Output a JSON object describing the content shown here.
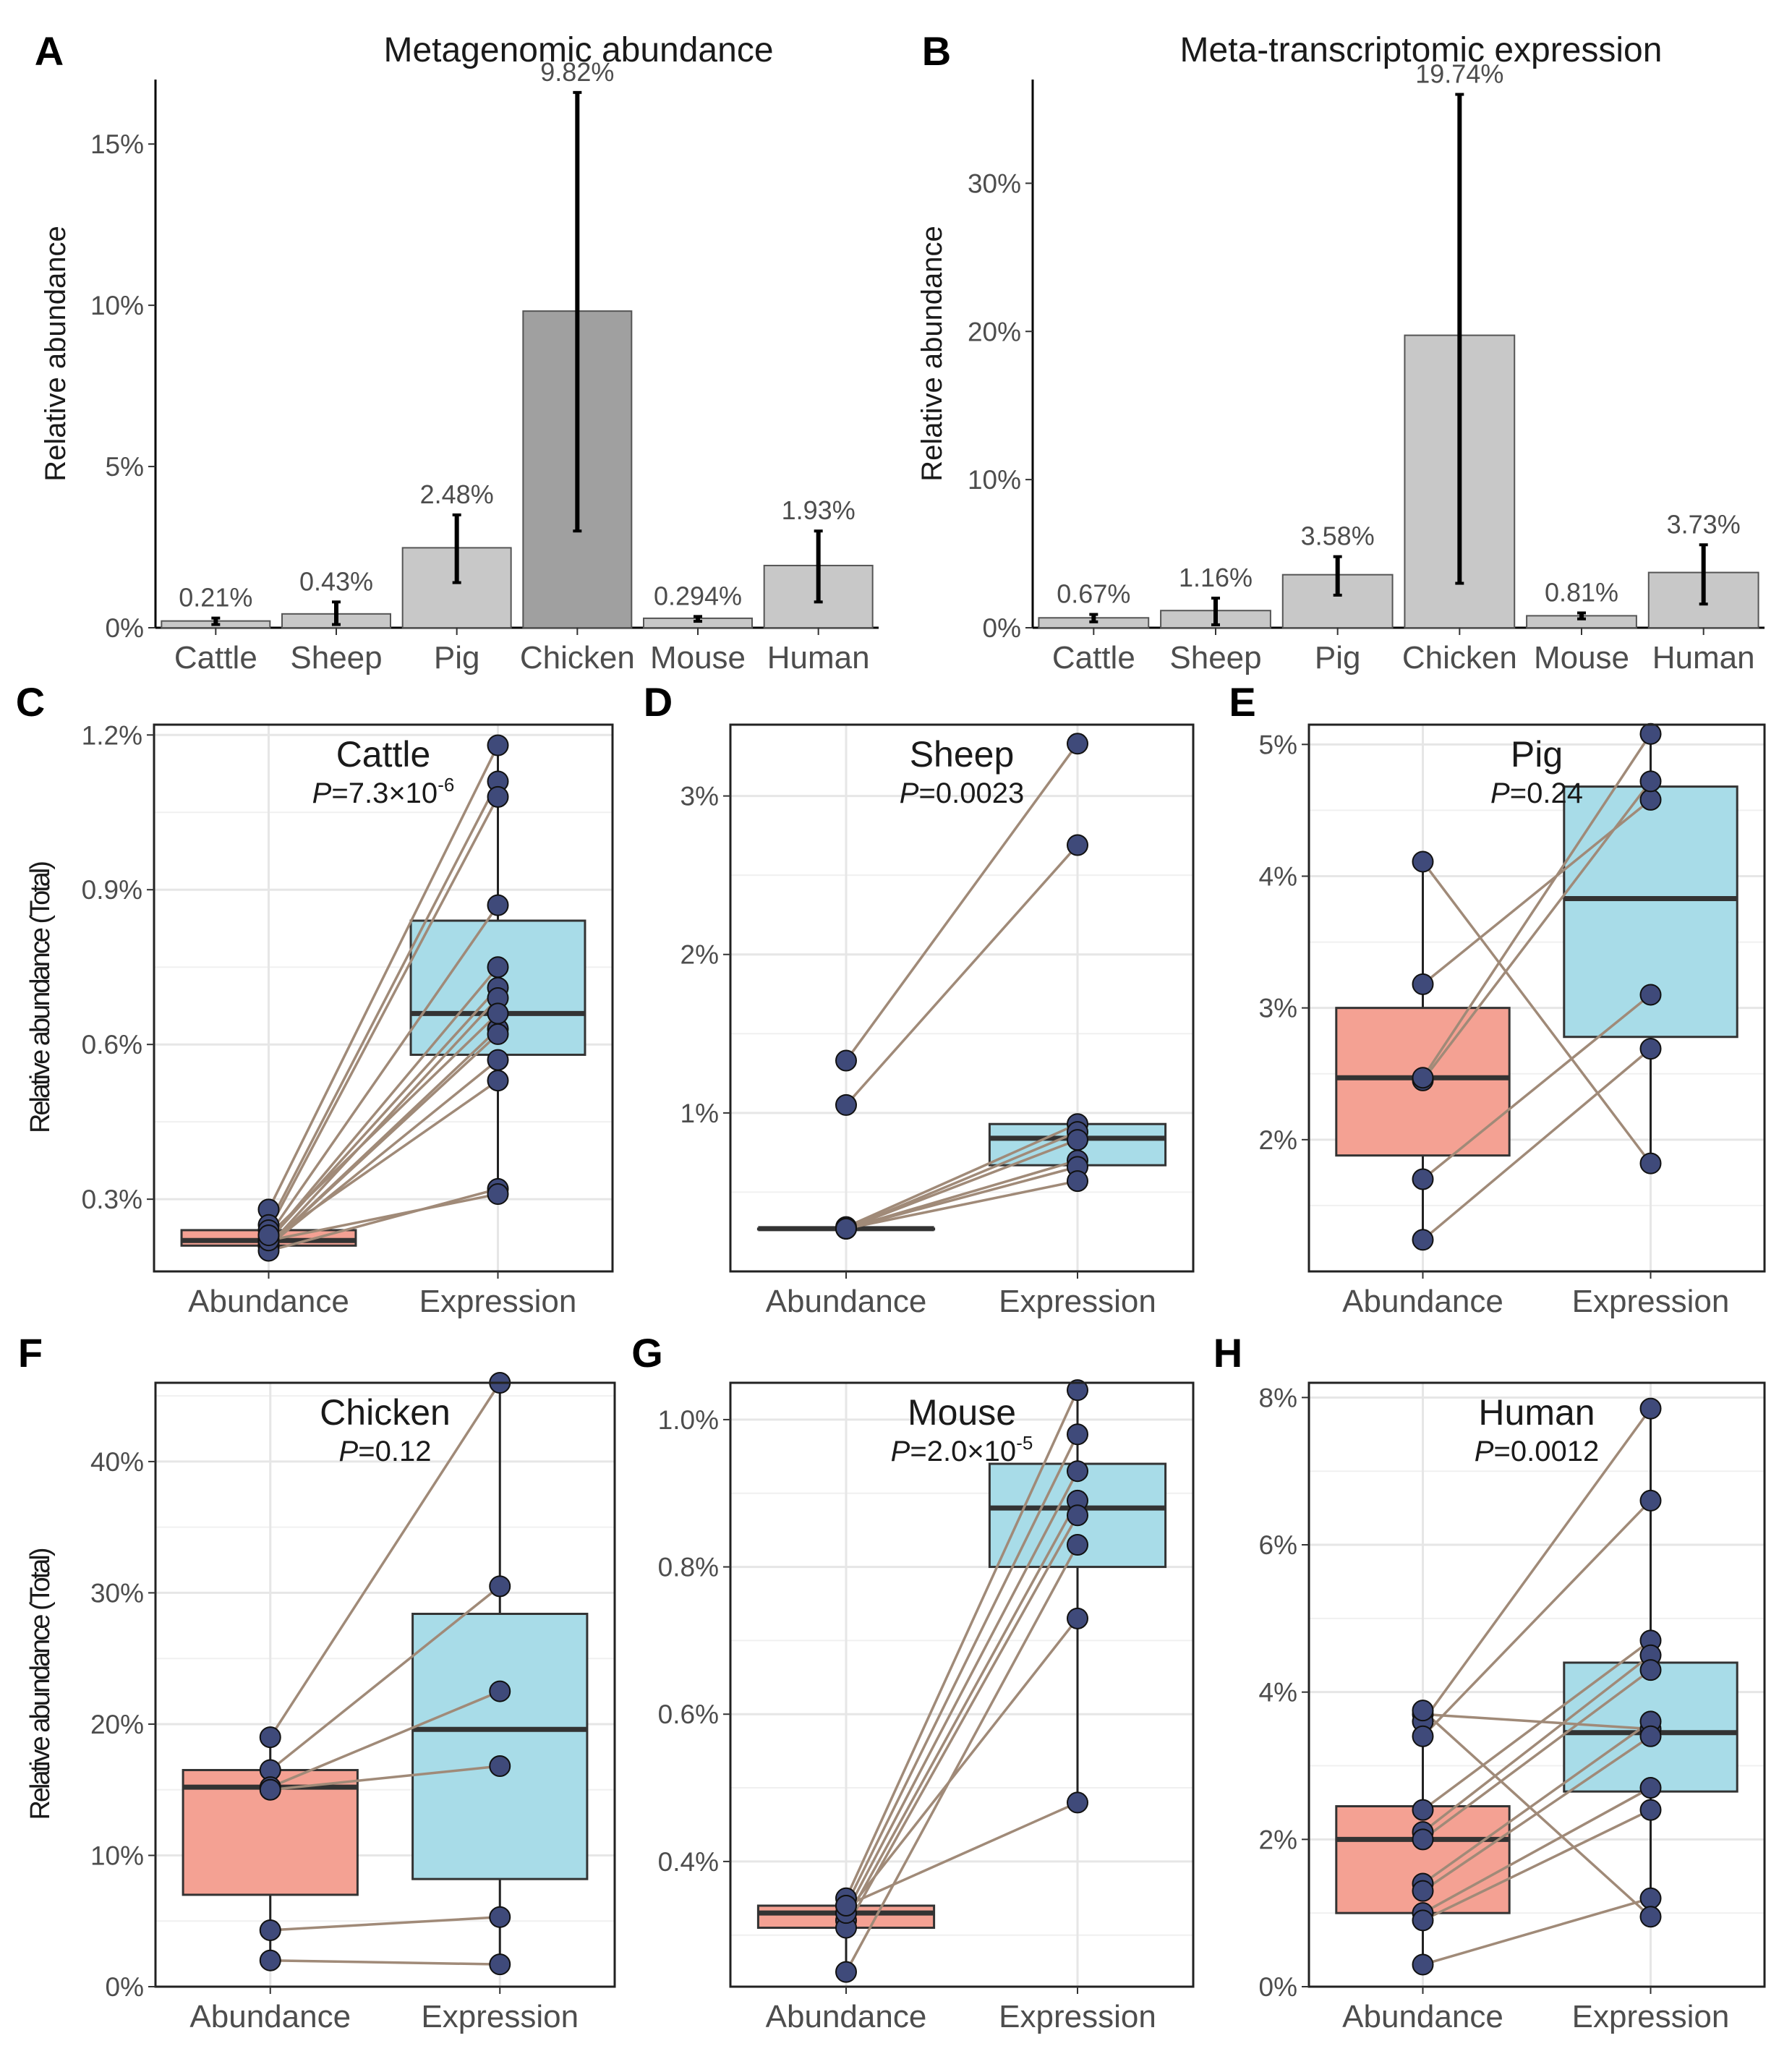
{
  "chart_data": [
    {
      "id": "A",
      "type": "bar",
      "letter": "A",
      "title": "Metagenomic abundance",
      "ylabel": "Relative abundance",
      "categories": [
        "Cattle",
        "Sheep",
        "Pig",
        "Chicken",
        "Mouse",
        "Human"
      ],
      "values": [
        0.21,
        0.43,
        2.48,
        9.82,
        0.294,
        1.93
      ],
      "labels": [
        "0.21%",
        "0.43%",
        "2.48%",
        "9.82%",
        "0.294%",
        "1.93%"
      ],
      "err_low": [
        0.1,
        0.1,
        1.4,
        3.0,
        0.2,
        0.8
      ],
      "err_high": [
        0.3,
        0.8,
        3.5,
        16.6,
        0.35,
        3.0
      ],
      "ylim": [
        0,
        17
      ],
      "yticks": [
        0,
        5,
        10,
        15
      ],
      "ytick_labels": [
        "0%",
        "5%",
        "10%",
        "15%"
      ],
      "bar_colors": [
        "#c8c8c8",
        "#c8c8c8",
        "#c8c8c8",
        "#a0a0a0",
        "#c8c8c8",
        "#c8c8c8"
      ]
    },
    {
      "id": "B",
      "type": "bar",
      "letter": "B",
      "title": "Meta-transcriptomic expression",
      "ylabel": "Relative abundance",
      "categories": [
        "Cattle",
        "Sheep",
        "Pig",
        "Chicken",
        "Mouse",
        "Human"
      ],
      "values": [
        0.67,
        1.16,
        3.58,
        19.74,
        0.81,
        3.73
      ],
      "labels": [
        "0.67%",
        "1.16%",
        "3.58%",
        "19.74%",
        "0.81%",
        "3.73%"
      ],
      "err_low": [
        0.4,
        0.2,
        2.2,
        3.0,
        0.6,
        1.6
      ],
      "err_high": [
        0.9,
        2.0,
        4.8,
        36.0,
        1.0,
        5.6
      ],
      "ylim": [
        0,
        37
      ],
      "yticks": [
        0,
        10,
        20,
        30
      ],
      "ytick_labels": [
        "0%",
        "10%",
        "20%",
        "30%"
      ],
      "bar_colors": [
        "#c8c8c8",
        "#c8c8c8",
        "#c8c8c8",
        "#c8c8c8",
        "#c8c8c8",
        "#c8c8c8"
      ]
    },
    {
      "id": "C",
      "type": "box",
      "letter": "C",
      "title": "Cattle",
      "pval_prefix": "P",
      "pval_text": "=7.3×10",
      "pval_exp": "-6",
      "ylabel": "Relative abundance (Total)",
      "categories": [
        "Abundance",
        "Expression"
      ],
      "ylim": [
        0.16,
        1.22
      ],
      "yticks": [
        0.3,
        0.6,
        0.9,
        1.2
      ],
      "ytick_labels": [
        "0.3%",
        "0.6%",
        "0.9%",
        "1.2%"
      ],
      "abundance": [
        0.28,
        0.25,
        0.24,
        0.23,
        0.22,
        0.22,
        0.21,
        0.21,
        0.21,
        0.21,
        0.22,
        0.2,
        0.22,
        0.23
      ],
      "expression": [
        1.18,
        1.11,
        1.08,
        0.87,
        0.75,
        0.71,
        0.69,
        0.63,
        0.62,
        0.57,
        0.53,
        0.32,
        0.31,
        0.66
      ],
      "box_abundance": {
        "q1": 0.21,
        "median": 0.22,
        "q3": 0.24,
        "wlo": 0.2,
        "whi": 0.28
      },
      "box_expression": {
        "q1": 0.58,
        "median": 0.66,
        "q3": 0.84,
        "wlo": 0.31,
        "whi": 1.18
      },
      "grid_y": [
        0.45,
        0.75,
        1.05
      ]
    },
    {
      "id": "D",
      "type": "box",
      "letter": "D",
      "title": "Sheep",
      "pval_prefix": "P",
      "pval_text": "=0.0023",
      "pval_exp": "",
      "categories": [
        "Abundance",
        "Expression"
      ],
      "ylim": [
        0.0,
        3.45
      ],
      "yticks": [
        1,
        2,
        3
      ],
      "ytick_labels": [
        "1%",
        "2%",
        "3%"
      ],
      "abundance": [
        1.33,
        1.05,
        0.28,
        0.27,
        0.27,
        0.27,
        0.27,
        0.27
      ],
      "expression": [
        3.33,
        2.69,
        0.93,
        0.88,
        0.83,
        0.7,
        0.66,
        0.57
      ],
      "box_abundance": {
        "q1": 0.27,
        "median": 0.27,
        "q3": 0.27,
        "wlo": 0.27,
        "whi": 0.27
      },
      "box_expression": {
        "q1": 0.67,
        "median": 0.84,
        "q3": 0.93,
        "wlo": 0.57,
        "whi": 0.93
      },
      "grid_y": [
        0.5,
        1.5,
        2.5
      ]
    },
    {
      "id": "E",
      "type": "box",
      "letter": "E",
      "title": "Pig",
      "pval_prefix": "P",
      "pval_text": "=0.24",
      "pval_exp": "",
      "categories": [
        "Abundance",
        "Expression"
      ],
      "ylim": [
        1.0,
        5.15
      ],
      "yticks": [
        2,
        3,
        4,
        5
      ],
      "ytick_labels": [
        "2%",
        "3%",
        "4%",
        "5%"
      ],
      "abundance": [
        4.11,
        3.18,
        2.45,
        2.47,
        1.7,
        1.24
      ],
      "expression": [
        1.82,
        4.58,
        4.72,
        5.08,
        3.1,
        2.69
      ],
      "box_abundance": {
        "q1": 1.88,
        "median": 2.47,
        "q3": 3.0,
        "wlo": 1.24,
        "whi": 4.11
      },
      "box_expression": {
        "q1": 2.78,
        "median": 3.83,
        "q3": 4.68,
        "wlo": 1.82,
        "whi": 5.08
      },
      "grid_y": [
        1.5,
        2.5,
        3.5,
        4.5
      ]
    },
    {
      "id": "F",
      "type": "box",
      "letter": "F",
      "title": "Chicken",
      "pval_prefix": "P",
      "pval_text": "=0.12",
      "pval_exp": "",
      "ylabel": "Relative abundance (Total)",
      "categories": [
        "Abundance",
        "Expression"
      ],
      "ylim": [
        0,
        46
      ],
      "yticks": [
        0,
        10,
        20,
        30,
        40
      ],
      "ytick_labels": [
        "0%",
        "10%",
        "20%",
        "30%",
        "40%"
      ],
      "abundance": [
        19.0,
        16.5,
        15.2,
        15.0,
        4.3,
        2.0
      ],
      "expression": [
        46.0,
        30.5,
        22.5,
        16.8,
        5.3,
        1.7
      ],
      "box_abundance": {
        "q1": 7.0,
        "median": 15.2,
        "q3": 16.5,
        "wlo": 2.0,
        "whi": 19.0
      },
      "box_expression": {
        "q1": 8.2,
        "median": 19.6,
        "q3": 28.4,
        "wlo": 1.7,
        "whi": 46.0
      },
      "grid_y": [
        5,
        15,
        25,
        35,
        45
      ]
    },
    {
      "id": "G",
      "type": "box",
      "letter": "G",
      "title": "Mouse",
      "pval_prefix": "P",
      "pval_text": "=2.0×10",
      "pval_exp": "-5",
      "categories": [
        "Abundance",
        "Expression"
      ],
      "ylim": [
        0.23,
        1.05
      ],
      "yticks": [
        0.4,
        0.6,
        0.8,
        1.0
      ],
      "ytick_labels": [
        "0.4%",
        "0.6%",
        "0.8%",
        "1.0%"
      ],
      "abundance": [
        0.35,
        0.34,
        0.33,
        0.32,
        0.31,
        0.25,
        0.33,
        0.34
      ],
      "expression": [
        1.04,
        0.98,
        0.93,
        0.89,
        0.87,
        0.83,
        0.73,
        0.48
      ],
      "box_abundance": {
        "q1": 0.31,
        "median": 0.33,
        "q3": 0.34,
        "wlo": 0.25,
        "whi": 0.35
      },
      "box_expression": {
        "q1": 0.8,
        "median": 0.88,
        "q3": 0.94,
        "wlo": 0.48,
        "whi": 1.04
      },
      "grid_y": [
        0.3,
        0.5,
        0.7,
        0.9
      ]
    },
    {
      "id": "H",
      "type": "box",
      "letter": "H",
      "title": "Human",
      "pval_prefix": "P",
      "pval_text": "=0.0012",
      "pval_exp": "",
      "categories": [
        "Abundance",
        "Expression"
      ],
      "ylim": [
        0,
        8.2
      ],
      "yticks": [
        0,
        2,
        4,
        6,
        8
      ],
      "ytick_labels": [
        "0%",
        "2%",
        "4%",
        "6%",
        "8%"
      ],
      "abundance": [
        3.7,
        3.6,
        3.4,
        2.4,
        2.1,
        2.0,
        1.4,
        1.3,
        1.0,
        0.9,
        0.3,
        3.75
      ],
      "expression": [
        3.5,
        7.85,
        6.6,
        4.7,
        4.5,
        4.3,
        3.6,
        3.4,
        2.7,
        2.4,
        1.2,
        0.95
      ],
      "box_abundance": {
        "q1": 1.0,
        "median": 2.0,
        "q3": 2.45,
        "wlo": 0.3,
        "whi": 3.75
      },
      "box_expression": {
        "q1": 2.65,
        "median": 3.45,
        "q3": 4.4,
        "wlo": 0.95,
        "whi": 7.85
      },
      "grid_y": [
        1,
        3,
        5,
        7
      ]
    }
  ],
  "style": {
    "abundance_fill": "#f4a193",
    "expression_fill": "#a8dce8",
    "point_fill": "#3f4a7a",
    "line_color": "#a08a78"
  }
}
